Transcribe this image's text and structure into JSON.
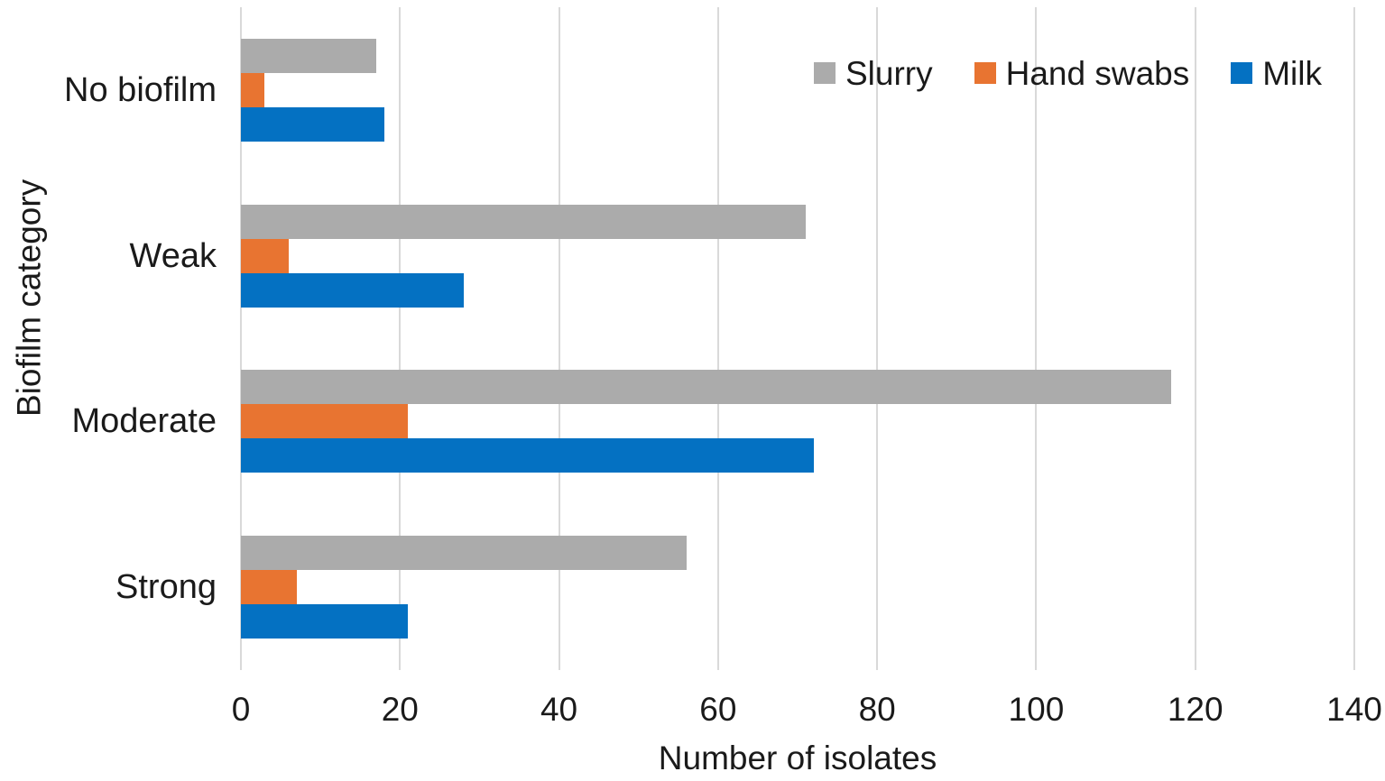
{
  "colors": {
    "gridline": "#D9D9D9",
    "text": "#1A1A1A",
    "background": "#FFFFFF"
  },
  "chart_data": {
    "type": "bar",
    "orientation": "horizontal",
    "title": "",
    "xlabel": "Number of isolates",
    "ylabel": "Biofilm category",
    "categories": [
      "No biofilm",
      "Weak",
      "Moderate",
      "Strong"
    ],
    "series": [
      {
        "name": "Slurry",
        "color": "#ABABAB",
        "values": [
          17,
          71,
          117,
          56
        ]
      },
      {
        "name": "Hand swabs",
        "color": "#E87431",
        "values": [
          3,
          6,
          21,
          7
        ]
      },
      {
        "name": "Milk",
        "color": "#0471C2",
        "values": [
          18,
          28,
          72,
          21
        ]
      }
    ],
    "xlim": [
      0,
      140
    ],
    "xticks": [
      0,
      20,
      40,
      60,
      80,
      100,
      120,
      140
    ],
    "grid": "vertical",
    "legend_position": "top-right",
    "legend_entries": [
      "Slurry",
      "Hand swabs",
      "Milk"
    ]
  }
}
